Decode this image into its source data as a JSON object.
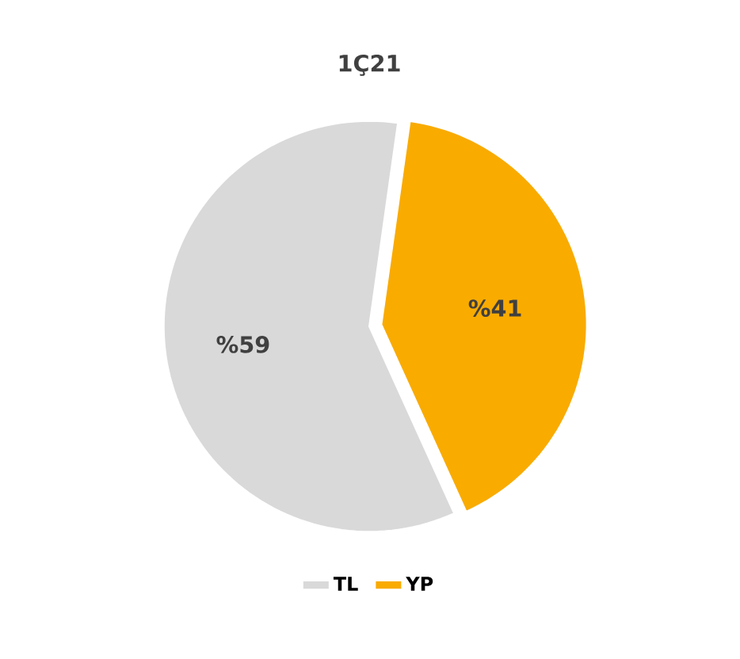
{
  "chart_data": {
    "type": "pie",
    "title": "1Ç21",
    "categories": [
      "TL",
      "YP"
    ],
    "values": [
      59,
      41
    ],
    "colors": [
      "#d9d9d9",
      "#f9ab00"
    ],
    "value_labels": [
      "%59",
      "%41"
    ],
    "legend": "bottom"
  }
}
